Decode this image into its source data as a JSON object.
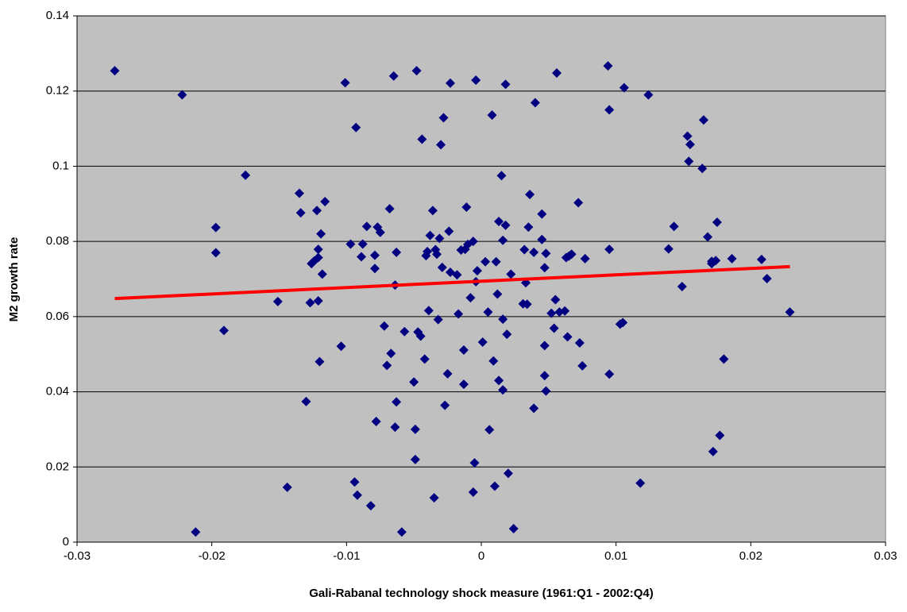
{
  "chart_data": {
    "type": "scatter",
    "x_label": "Gali-Rabanal technology shock measure (1961:Q1 - 2002:Q4)",
    "y_label": "M2 growth rate",
    "color": "#000080",
    "background": "#c0c0c0",
    "grid": true,
    "xlim": [
      -0.03,
      0.03
    ],
    "xticks": [
      -0.03,
      -0.02,
      -0.01,
      0,
      0.01,
      0.02,
      0.03
    ],
    "ylim": [
      0,
      0.14
    ],
    "yticks": [
      0,
      0.02,
      0.04,
      0.06,
      0.08,
      0.1,
      0.12,
      0.14
    ],
    "x": [
      -0.0272,
      -0.0222,
      -0.0212,
      -0.0197,
      -0.0197,
      -0.0191,
      -0.0175,
      -0.0151,
      -0.0144,
      -0.0135,
      -0.0134,
      -0.013,
      -0.0127,
      -0.0126,
      -0.0124,
      -0.0122,
      -0.0121,
      -0.0121,
      -0.0121,
      -0.012,
      -0.0119,
      -0.0118,
      -0.0116,
      -0.0104,
      -0.0101,
      -0.0097,
      -0.0094,
      -0.0093,
      -0.0092,
      -0.0089,
      -0.0088,
      -0.0085,
      -0.0082,
      -0.0079,
      -0.0079,
      -0.0078,
      -0.0077,
      -0.0075,
      -0.0072,
      -0.007,
      -0.0068,
      -0.0067,
      -0.0065,
      -0.0064,
      -0.0064,
      -0.0063,
      -0.0063,
      -0.0059,
      -0.0057,
      -0.005,
      -0.0049,
      -0.0049,
      -0.0048,
      -0.0047,
      -0.0045,
      -0.0044,
      -0.0042,
      -0.0041,
      -0.004,
      -0.0039,
      -0.0038,
      -0.0036,
      -0.0035,
      -0.0034,
      -0.0033,
      -0.0032,
      -0.0031,
      -0.003,
      -0.0029,
      -0.0028,
      -0.0027,
      -0.0025,
      -0.0024,
      -0.0023,
      -0.0023,
      -0.0018,
      -0.0017,
      -0.0015,
      -0.0013,
      -0.0013,
      -0.0012,
      -0.0011,
      -0.001,
      -0.0008,
      -0.0006,
      -0.0006,
      -0.0005,
      -0.0004,
      -0.0004,
      -0.0003,
      0.0001,
      0.0003,
      0.0005,
      0.0006,
      0.0008,
      0.0009,
      0.001,
      0.0011,
      0.0012,
      0.0013,
      0.0013,
      0.0015,
      0.0016,
      0.0016,
      0.0016,
      0.0018,
      0.0018,
      0.0019,
      0.002,
      0.0022,
      0.0024,
      0.0031,
      0.0032,
      0.0033,
      0.0034,
      0.0035,
      0.0036,
      0.0039,
      0.0039,
      0.004,
      0.0045,
      0.0045,
      0.0047,
      0.0047,
      0.0047,
      0.0048,
      0.0048,
      0.0052,
      0.0054,
      0.0055,
      0.0056,
      0.0058,
      0.0062,
      0.0063,
      0.0064,
      0.0065,
      0.0067,
      0.0072,
      0.0073,
      0.0075,
      0.0077,
      0.0094,
      0.0095,
      0.0095,
      0.0095,
      0.0103,
      0.0105,
      0.0106,
      0.0118,
      0.0124,
      0.0139,
      0.0143,
      0.0149,
      0.0153,
      0.0154,
      0.0155,
      0.0164,
      0.0165,
      0.0168,
      0.0171,
      0.0172,
      0.0174,
      0.0175,
      0.0177,
      0.018,
      0.0186,
      0.0208,
      0.0212,
      0.0229,
      0.0171
    ],
    "values": [
      0.1254,
      0.119,
      0.0027,
      0.0837,
      0.077,
      0.0563,
      0.0976,
      0.064,
      0.0146,
      0.0928,
      0.0876,
      0.0374,
      0.0637,
      0.0741,
      0.0748,
      0.0882,
      0.0642,
      0.0779,
      0.0757,
      0.048,
      0.082,
      0.0713,
      0.0906,
      0.0521,
      0.1222,
      0.0793,
      0.016,
      0.1103,
      0.0125,
      0.0759,
      0.0793,
      0.084,
      0.0097,
      0.0728,
      0.0763,
      0.0321,
      0.0838,
      0.0824,
      0.0575,
      0.047,
      0.0887,
      0.0502,
      0.124,
      0.0684,
      0.0306,
      0.0373,
      0.0771,
      0.0027,
      0.056,
      0.0426,
      0.03,
      0.022,
      0.1254,
      0.0559,
      0.0548,
      0.1072,
      0.0487,
      0.0762,
      0.0773,
      0.0616,
      0.0816,
      0.0882,
      0.0118,
      0.0778,
      0.0766,
      0.0592,
      0.0808,
      0.1057,
      0.0731,
      0.1129,
      0.0364,
      0.0448,
      0.0827,
      0.0718,
      0.1221,
      0.0711,
      0.0607,
      0.0777,
      0.0511,
      0.042,
      0.0779,
      0.0891,
      0.0792,
      0.065,
      0.08,
      0.0133,
      0.0211,
      0.1229,
      0.0693,
      0.0722,
      0.0532,
      0.0746,
      0.0612,
      0.0299,
      0.1136,
      0.0482,
      0.0149,
      0.0746,
      0.066,
      0.043,
      0.0853,
      0.0975,
      0.0593,
      0.0405,
      0.0803,
      0.1218,
      0.0843,
      0.0553,
      0.0183,
      0.0713,
      0.0036,
      0.0634,
      0.0778,
      0.069,
      0.0633,
      0.0838,
      0.0925,
      0.0356,
      0.0771,
      0.1169,
      0.0805,
      0.0873,
      0.0523,
      0.0443,
      0.073,
      0.0768,
      0.0402,
      0.0609,
      0.0569,
      0.0645,
      0.1248,
      0.0612,
      0.0615,
      0.0757,
      0.0546,
      0.0761,
      0.0766,
      0.0903,
      0.053,
      0.0469,
      0.0754,
      0.1267,
      0.115,
      0.0779,
      0.0447,
      0.058,
      0.0584,
      0.1209,
      0.0157,
      0.119,
      0.078,
      0.084,
      0.068,
      0.108,
      0.1013,
      0.1058,
      0.0994,
      0.1123,
      0.0812,
      0.0741,
      0.0241,
      0.0749,
      0.0851,
      0.0284,
      0.0487,
      0.0754,
      0.0752,
      0.0701,
      0.0612,
      0.0747
    ],
    "trendline": {
      "color": "#ff0000",
      "x": [
        -0.0272,
        0.0229
      ],
      "y": [
        0.0648,
        0.0733
      ]
    }
  }
}
